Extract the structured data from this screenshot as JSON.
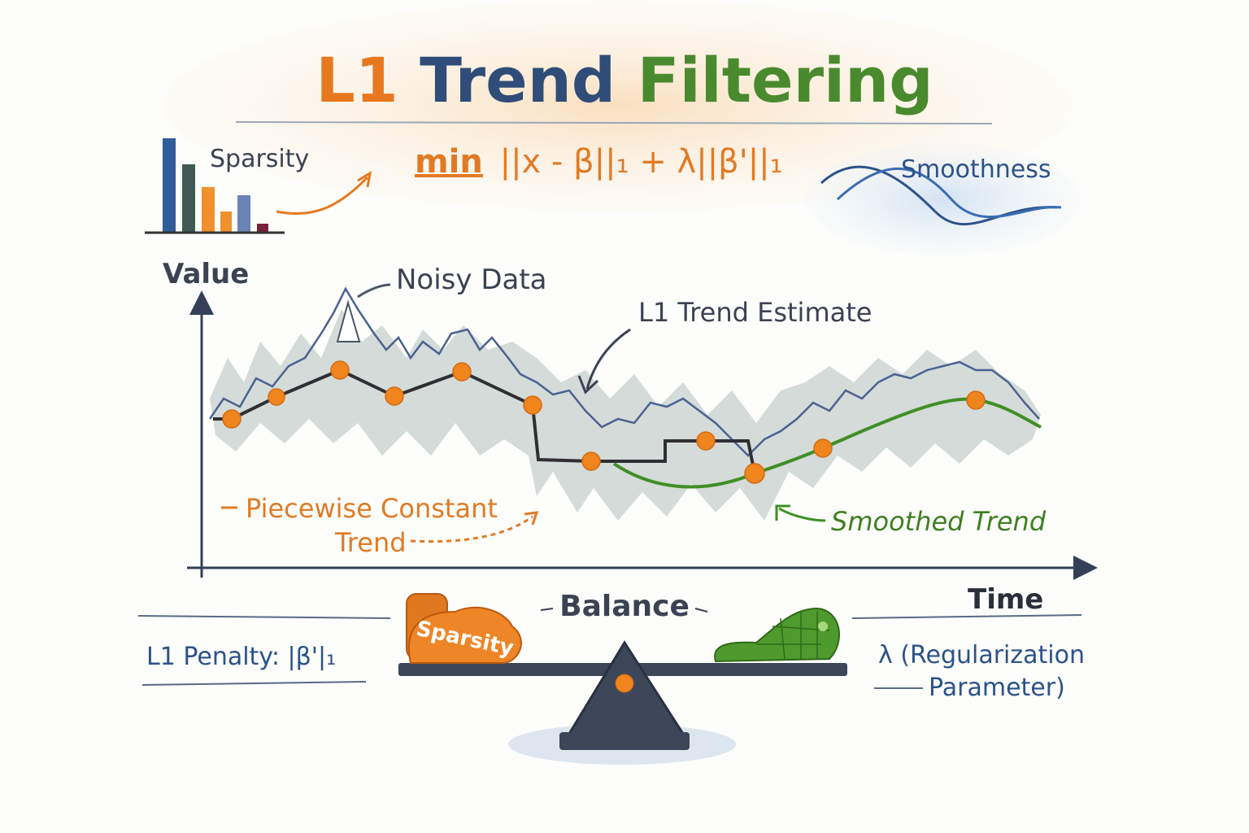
{
  "header": {
    "title_parts": [
      "L1",
      "Trend",
      "Filtering"
    ],
    "formula": {
      "min": "min",
      "expression": "||x - β||₁ + λ||β'||₁"
    }
  },
  "icons": {
    "sparsity": "Sparsity",
    "smoothness": "Smoothness"
  },
  "plot": {
    "y_axis_label": "Value",
    "x_axis_label": "Time",
    "annotations": {
      "noisy_data": "Noisy Data",
      "trend_estimate": "L1 Trend Estimate",
      "piecewise_constant": [
        "Piecewise Constant",
        "Trend"
      ],
      "smoothed_trend": "Smoothed Trend"
    }
  },
  "balance": {
    "title": "Balance",
    "left_weight": "Sparsity",
    "left_label": "L1 Penalty: |β'|₁",
    "right_label": [
      "λ (Regularization",
      "Parameter)"
    ]
  }
}
